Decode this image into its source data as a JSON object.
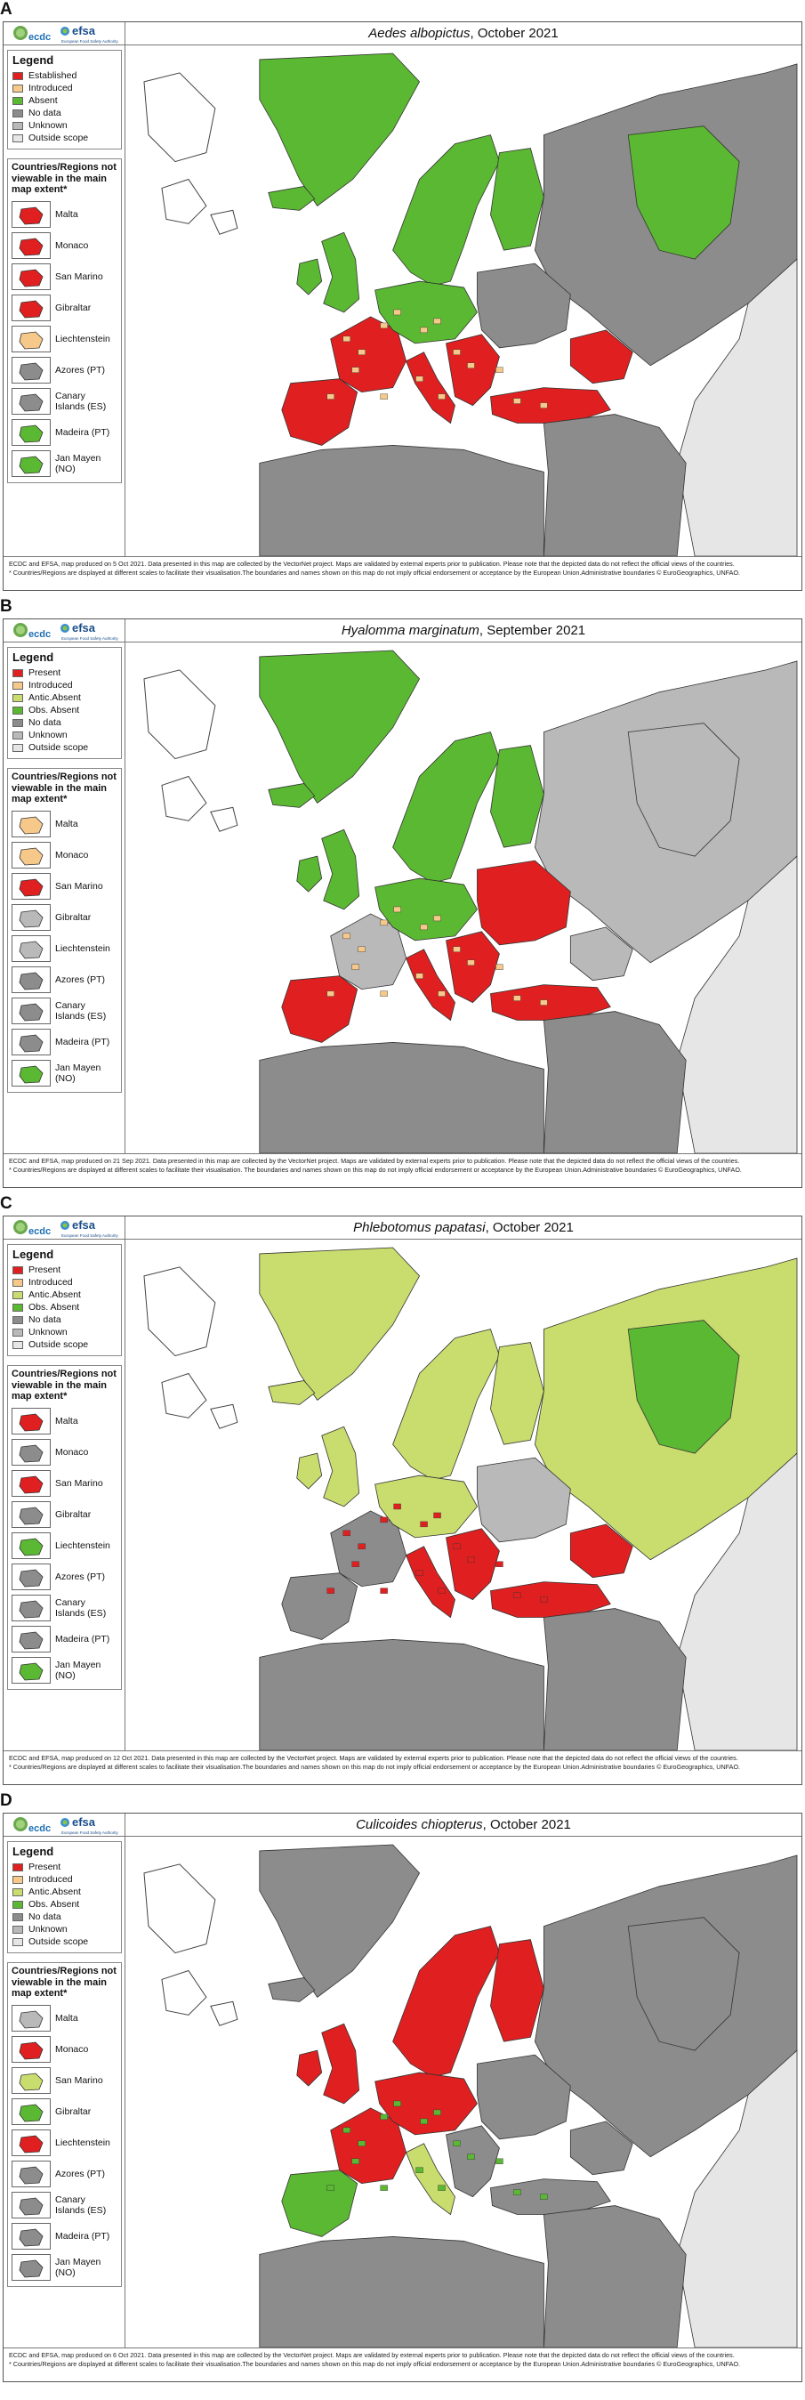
{
  "colors": {
    "red": "#e02020",
    "orange": "#f6c98a",
    "green": "#5bb832",
    "lightgreen": "#c9dc6e",
    "darkgrey": "#8c8c8c",
    "grey": "#b9b9b9",
    "lightgrey": "#e6e6e6",
    "sea": "#ffffff",
    "border": "#333333"
  },
  "logos": {
    "ecdc": "ecdc",
    "efsa": "efsa",
    "efsa_sub": "European Food Safety Authority"
  },
  "panels": [
    {
      "letter": "A",
      "species": "Aedes albopictus",
      "title_suffix": ", October 2021",
      "legend_title": "Legend",
      "legend": [
        {
          "label": "Established",
          "color": "#e02020"
        },
        {
          "label": "Introduced",
          "color": "#f6c98a"
        },
        {
          "label": "Absent",
          "color": "#5bb832"
        },
        {
          "label": "No data",
          "color": "#8c8c8c"
        },
        {
          "label": "Unknown",
          "color": "#b9b9b9"
        },
        {
          "label": "Outside scope",
          "color": "#e6e6e6"
        }
      ],
      "cr_title": "Countries/Regions not viewable in the main map extent*",
      "cr_items": [
        {
          "label": "Malta",
          "color": "#e02020"
        },
        {
          "label": "Monaco",
          "color": "#e02020"
        },
        {
          "label": "San Marino",
          "color": "#e02020"
        },
        {
          "label": "Gibraltar",
          "color": "#e02020"
        },
        {
          "label": "Liechtenstein",
          "color": "#f6c98a"
        },
        {
          "label": "Azores (PT)",
          "color": "#8c8c8c"
        },
        {
          "label": "Canary Islands (ES)",
          "color": "#8c8c8c"
        },
        {
          "label": "Madeira (PT)",
          "color": "#5bb832"
        },
        {
          "label": "Jan Mayen (NO)",
          "color": "#5bb832"
        }
      ],
      "footer": [
        "ECDC and EFSA, map produced on 5 Oct 2021. Data presented in this map are collected by the VectorNet project. Maps are validated by external experts prior to publication. Please note that the depicted data do not reflect the official views of the countries.",
        "* Countries/Regions are displayed at different scales to facilitate their visualisation.The boundaries and names shown on this map do not imply official endorsement or acceptance by the European Union.Administrative boundaries © EuroGeographics, UNFAO."
      ]
    },
    {
      "letter": "B",
      "species": "Hyalomma marginatum",
      "title_suffix": ", September 2021",
      "legend_title": "Legend",
      "legend": [
        {
          "label": "Present",
          "color": "#e02020"
        },
        {
          "label": "Introduced",
          "color": "#f6c98a"
        },
        {
          "label": "Antic.Absent",
          "color": "#c9dc6e"
        },
        {
          "label": "Obs. Absent",
          "color": "#5bb832"
        },
        {
          "label": "No data",
          "color": "#8c8c8c"
        },
        {
          "label": "Unknown",
          "color": "#b9b9b9"
        },
        {
          "label": "Outside scope",
          "color": "#e6e6e6"
        }
      ],
      "cr_title": "Countries/Regions not viewable in the main map extent*",
      "cr_items": [
        {
          "label": "Malta",
          "color": "#f6c98a"
        },
        {
          "label": "Monaco",
          "color": "#f6c98a"
        },
        {
          "label": "San Marino",
          "color": "#e02020"
        },
        {
          "label": "Gibraltar",
          "color": "#b9b9b9"
        },
        {
          "label": "Liechtenstein",
          "color": "#b9b9b9"
        },
        {
          "label": "Azores (PT)",
          "color": "#8c8c8c"
        },
        {
          "label": "Canary Islands (ES)",
          "color": "#8c8c8c"
        },
        {
          "label": "Madeira (PT)",
          "color": "#8c8c8c"
        },
        {
          "label": "Jan Mayen (NO)",
          "color": "#5bb832"
        }
      ],
      "footer": [
        "ECDC and EFSA, map produced on 21 Sep 2021. Data presented in this map are collected by the VectorNet project. Maps are validated by external experts prior to publication. Please note that the depicted data do not reflect the official views of the countries.",
        "* Countries/Regions are displayed at different scales to facilitate their visualisation. The boundaries and names shown on this map do not imply official endorsement or acceptance by the European Union.Administrative boundaries © EuroGeographics, UNFAO."
      ]
    },
    {
      "letter": "C",
      "species": "Phlebotomus papatasi",
      "title_suffix": ", October 2021",
      "legend_title": "Legend",
      "legend": [
        {
          "label": "Present",
          "color": "#e02020"
        },
        {
          "label": "Introduced",
          "color": "#f6c98a"
        },
        {
          "label": "Antic.Absent",
          "color": "#c9dc6e"
        },
        {
          "label": "Obs. Absent",
          "color": "#5bb832"
        },
        {
          "label": "No data",
          "color": "#8c8c8c"
        },
        {
          "label": "Unknown",
          "color": "#b9b9b9"
        },
        {
          "label": "Outside scope",
          "color": "#e6e6e6"
        }
      ],
      "cr_title": "Countries/Regions not viewable in the main map extent*",
      "cr_items": [
        {
          "label": "Malta",
          "color": "#e02020"
        },
        {
          "label": "Monaco",
          "color": "#8c8c8c"
        },
        {
          "label": "San Marino",
          "color": "#e02020"
        },
        {
          "label": "Gibraltar",
          "color": "#8c8c8c"
        },
        {
          "label": "Liechtenstein",
          "color": "#5bb832"
        },
        {
          "label": "Azores (PT)",
          "color": "#8c8c8c"
        },
        {
          "label": "Canary Islands (ES)",
          "color": "#8c8c8c"
        },
        {
          "label": "Madeira (PT)",
          "color": "#8c8c8c"
        },
        {
          "label": "Jan Mayen (NO)",
          "color": "#5bb832"
        }
      ],
      "footer": [
        "ECDC and EFSA, map produced on 12 Oct 2021. Data presented in this map are collected by the VectorNet project. Maps are validated by external experts prior to publication. Please note that the depicted data do not reflect the official views of the countries.",
        "* Countries/Regions are displayed at different scales to facilitate their visualisation.The boundaries and names shown on this map do not imply official endorsement or acceptance by the European Union.Administrative boundaries © EuroGeographics, UNFAO."
      ]
    },
    {
      "letter": "D",
      "species": "Culicoides chiopterus",
      "title_suffix": ", October 2021",
      "legend_title": "Legend",
      "legend": [
        {
          "label": "Present",
          "color": "#e02020"
        },
        {
          "label": "Introduced",
          "color": "#f6c98a"
        },
        {
          "label": "Antic.Absent",
          "color": "#c9dc6e"
        },
        {
          "label": "Obs. Absent",
          "color": "#5bb832"
        },
        {
          "label": "No data",
          "color": "#8c8c8c"
        },
        {
          "label": "Unknown",
          "color": "#b9b9b9"
        },
        {
          "label": "Outside scope",
          "color": "#e6e6e6"
        }
      ],
      "cr_title": "Countries/Regions not viewable in the main map extent*",
      "cr_items": [
        {
          "label": "Malta",
          "color": "#b9b9b9"
        },
        {
          "label": "Monaco",
          "color": "#e02020"
        },
        {
          "label": "San Marino",
          "color": "#c9dc6e"
        },
        {
          "label": "Gibraltar",
          "color": "#5bb832"
        },
        {
          "label": "Liechtenstein",
          "color": "#e02020"
        },
        {
          "label": "Azores (PT)",
          "color": "#8c8c8c"
        },
        {
          "label": "Canary Islands (ES)",
          "color": "#8c8c8c"
        },
        {
          "label": "Madeira (PT)",
          "color": "#8c8c8c"
        },
        {
          "label": "Jan Mayen (NO)",
          "color": "#8c8c8c"
        }
      ],
      "footer": [
        "ECDC and EFSA, map produced on 6 Oct 2021. Data presented in this map are collected by the VectorNet project. Maps are validated by external experts prior to publication. Please note that the depicted data do not reflect the official views of the countries.",
        "* Countries/Regions are displayed at different scales to facilitate their visualisation.The boundaries and names shown on this map do not imply official endorsement or acceptance by the European Union.Administrative boundaries © EuroGeographics, UNFAO."
      ]
    }
  ],
  "region_colors": [
    {
      "greenland": "#5bb832",
      "iceland": "#5bb832",
      "scandinavia": "#5bb832",
      "finland": "#5bb832",
      "russia_west": "#8c8c8c",
      "russia_inner": "#5bb832",
      "russia_east": "#e6e6e6",
      "uk": "#5bb832",
      "ireland": "#5bb832",
      "france": "#e02020",
      "iberia": "#e02020",
      "central_europe": "#5bb832",
      "italy": "#e02020",
      "balkans": "#e02020",
      "eastern_europe": "#8c8c8c",
      "turkey": "#e02020",
      "caucasus": "#e02020",
      "north_africa": "#8c8c8c",
      "middle_east": "#8c8c8c",
      "dots": "#f6c98a"
    },
    {
      "greenland": "#5bb832",
      "iceland": "#5bb832",
      "scandinavia": "#5bb832",
      "finland": "#5bb832",
      "russia_west": "#b9b9b9",
      "russia_inner": "#b9b9b9",
      "russia_east": "#e6e6e6",
      "uk": "#5bb832",
      "ireland": "#5bb832",
      "france": "#b9b9b9",
      "iberia": "#e02020",
      "central_europe": "#5bb832",
      "italy": "#e02020",
      "balkans": "#e02020",
      "eastern_europe": "#e02020",
      "turkey": "#e02020",
      "caucasus": "#b9b9b9",
      "north_africa": "#8c8c8c",
      "middle_east": "#8c8c8c",
      "dots": "#f6c98a"
    },
    {
      "greenland": "#c9dc6e",
      "iceland": "#c9dc6e",
      "scandinavia": "#c9dc6e",
      "finland": "#c9dc6e",
      "russia_west": "#c9dc6e",
      "russia_inner": "#5bb832",
      "russia_east": "#e6e6e6",
      "uk": "#c9dc6e",
      "ireland": "#c9dc6e",
      "france": "#8c8c8c",
      "iberia": "#8c8c8c",
      "central_europe": "#c9dc6e",
      "italy": "#e02020",
      "balkans": "#e02020",
      "eastern_europe": "#b9b9b9",
      "turkey": "#e02020",
      "caucasus": "#e02020",
      "north_africa": "#8c8c8c",
      "middle_east": "#8c8c8c",
      "dots": "#e02020"
    },
    {
      "greenland": "#8c8c8c",
      "iceland": "#8c8c8c",
      "scandinavia": "#e02020",
      "finland": "#e02020",
      "russia_west": "#8c8c8c",
      "russia_inner": "#8c8c8c",
      "russia_east": "#e6e6e6",
      "uk": "#e02020",
      "ireland": "#e02020",
      "france": "#e02020",
      "iberia": "#5bb832",
      "central_europe": "#e02020",
      "italy": "#c9dc6e",
      "balkans": "#8c8c8c",
      "eastern_europe": "#8c8c8c",
      "turkey": "#8c8c8c",
      "caucasus": "#8c8c8c",
      "north_africa": "#8c8c8c",
      "middle_east": "#8c8c8c",
      "dots": "#5bb832"
    }
  ]
}
